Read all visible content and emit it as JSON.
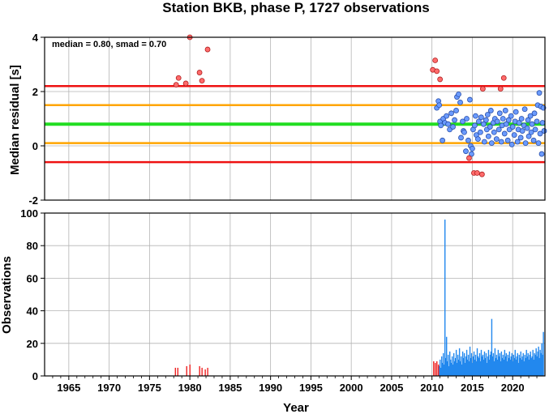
{
  "title": "Station BKB, phase P, 1727 observations",
  "colors": {
    "median_line": "#22dd22",
    "smad_line": "#ffa500",
    "outlier_line": "#ee1111",
    "outlier_point": "#ff6b6b",
    "inlier_point": "#6b9bff",
    "bar_early": "#ee2222",
    "bar_late": "#2288ee",
    "grid": "#b4b4b4"
  },
  "chart_data": [
    {
      "type": "scatter",
      "ylabel": "Median residual [s]",
      "xlim": [
        1962,
        2024
      ],
      "ylim": [
        -2,
        4
      ],
      "yticks": [
        4,
        2,
        0,
        -2
      ],
      "annotation": "median = 0.80, smad = 0.70",
      "grid": true,
      "hlines": [
        {
          "y": 2.2,
          "role": "outlier"
        },
        {
          "y": 1.5,
          "role": "smad"
        },
        {
          "y": 0.8,
          "role": "median"
        },
        {
          "y": 0.1,
          "role": "smad"
        },
        {
          "y": -0.6,
          "role": "outlier"
        }
      ],
      "outliers": [
        [
          1978.3,
          2.25
        ],
        [
          1978.6,
          2.5
        ],
        [
          1979.5,
          2.3
        ],
        [
          1980.0,
          4.0
        ],
        [
          1981.2,
          2.7
        ],
        [
          1981.5,
          2.4
        ],
        [
          1982.2,
          3.55
        ],
        [
          2010.1,
          2.8
        ],
        [
          2010.4,
          3.15
        ],
        [
          2010.6,
          2.75
        ],
        [
          2011.0,
          2.45
        ],
        [
          2014.6,
          -0.45
        ],
        [
          2015.2,
          -1.0
        ],
        [
          2015.6,
          -1.0
        ],
        [
          2016.2,
          -1.05
        ],
        [
          2016.3,
          2.1
        ],
        [
          2018.5,
          2.1
        ],
        [
          2018.9,
          2.5
        ]
      ],
      "inliers": [
        [
          2010.6,
          1.4
        ],
        [
          2010.8,
          1.65
        ],
        [
          2010.9,
          1.5
        ],
        [
          2011.0,
          0.9
        ],
        [
          2011.1,
          0.75
        ],
        [
          2011.3,
          0.2
        ],
        [
          2011.4,
          1.0
        ],
        [
          2011.6,
          0.85
        ],
        [
          2011.8,
          1.1
        ],
        [
          2012.0,
          0.8
        ],
        [
          2012.2,
          0.6
        ],
        [
          2012.4,
          1.2
        ],
        [
          2012.6,
          0.7
        ],
        [
          2012.8,
          0.95
        ],
        [
          2013.0,
          1.3
        ],
        [
          2013.1,
          1.8
        ],
        [
          2013.3,
          1.9
        ],
        [
          2013.5,
          1.6
        ],
        [
          2013.6,
          0.3
        ],
        [
          2013.8,
          0.9
        ],
        [
          2013.9,
          0.55
        ],
        [
          2014.0,
          0.5
        ],
        [
          2014.2,
          -0.2
        ],
        [
          2014.3,
          1.0
        ],
        [
          2014.5,
          0.2
        ],
        [
          2014.7,
          1.7
        ],
        [
          2014.8,
          0.0
        ],
        [
          2014.9,
          -0.3
        ],
        [
          2015.0,
          -0.1
        ],
        [
          2015.1,
          0.6
        ],
        [
          2015.3,
          0.75
        ],
        [
          2015.4,
          1.1
        ],
        [
          2015.5,
          0.4
        ],
        [
          2015.7,
          0.25
        ],
        [
          2015.8,
          0.9
        ],
        [
          2016.0,
          0.5
        ],
        [
          2016.1,
          1.05
        ],
        [
          2016.4,
          0.8
        ],
        [
          2016.5,
          0.15
        ],
        [
          2016.7,
          0.95
        ],
        [
          2016.8,
          0.6
        ],
        [
          2016.9,
          1.15
        ],
        [
          2017.0,
          0.35
        ],
        [
          2017.2,
          0.7
        ],
        [
          2017.3,
          1.3
        ],
        [
          2017.4,
          0.1
        ],
        [
          2017.6,
          0.85
        ],
        [
          2017.7,
          0.5
        ],
        [
          2017.8,
          1.0
        ],
        [
          2018.0,
          0.25
        ],
        [
          2018.1,
          0.9
        ],
        [
          2018.3,
          0.6
        ],
        [
          2018.4,
          1.2
        ],
        [
          2018.6,
          0.15
        ],
        [
          2018.7,
          0.75
        ],
        [
          2018.8,
          1.0
        ],
        [
          2019.0,
          0.45
        ],
        [
          2019.1,
          1.3
        ],
        [
          2019.2,
          0.8
        ],
        [
          2019.4,
          0.2
        ],
        [
          2019.5,
          0.95
        ],
        [
          2019.6,
          0.6
        ],
        [
          2019.8,
          1.1
        ],
        [
          2019.9,
          0.05
        ],
        [
          2020.0,
          0.7
        ],
        [
          2020.2,
          0.4
        ],
        [
          2020.3,
          0.9
        ],
        [
          2020.4,
          1.25
        ],
        [
          2020.6,
          0.15
        ],
        [
          2020.7,
          0.6
        ],
        [
          2020.8,
          0.85
        ],
        [
          2021.0,
          0.3
        ],
        [
          2021.1,
          1.0
        ],
        [
          2021.2,
          0.55
        ],
        [
          2021.4,
          0.75
        ],
        [
          2021.5,
          1.35
        ],
        [
          2021.6,
          0.1
        ],
        [
          2021.8,
          0.65
        ],
        [
          2021.9,
          0.95
        ],
        [
          2022.0,
          0.35
        ],
        [
          2022.2,
          1.1
        ],
        [
          2022.3,
          0.5
        ],
        [
          2022.4,
          0.8
        ],
        [
          2022.6,
          0.2
        ],
        [
          2022.7,
          1.2
        ],
        [
          2022.8,
          0.6
        ],
        [
          2023.0,
          0.9
        ],
        [
          2023.1,
          1.5
        ],
        [
          2023.2,
          0.1
        ],
        [
          2023.3,
          1.95
        ],
        [
          2023.4,
          0.45
        ],
        [
          2023.5,
          1.45
        ],
        [
          2023.6,
          -0.3
        ],
        [
          2023.7,
          0.85
        ],
        [
          2023.8,
          1.4
        ],
        [
          2023.9,
          0.55
        ]
      ]
    },
    {
      "type": "bar",
      "xlabel": "Year",
      "ylabel": "Observations",
      "xlim": [
        1962,
        2024
      ],
      "ylim": [
        0,
        100
      ],
      "yticks": [
        100,
        80,
        60,
        40,
        20,
        0
      ],
      "xticks": [
        1965,
        1970,
        1975,
        1980,
        1985,
        1990,
        1995,
        2000,
        2005,
        2010,
        2015,
        2020
      ],
      "grid": true,
      "early_bars": [
        [
          1978.2,
          5
        ],
        [
          1978.5,
          5
        ],
        [
          1979.6,
          6
        ],
        [
          1980.0,
          7
        ],
        [
          1981.2,
          6
        ],
        [
          1981.5,
          5
        ],
        [
          1981.9,
          4
        ],
        [
          1982.2,
          5
        ]
      ],
      "late_bars_red": [
        [
          2010.2,
          9
        ],
        [
          2010.4,
          8
        ],
        [
          2010.6,
          9
        ],
        [
          2010.8,
          7
        ]
      ],
      "late_bars": [
        [
          2010.9,
          6
        ],
        [
          2011.0,
          10
        ],
        [
          2011.1,
          5
        ],
        [
          2011.2,
          12
        ],
        [
          2011.3,
          8
        ],
        [
          2011.4,
          14
        ],
        [
          2011.5,
          7
        ],
        [
          2011.6,
          96
        ],
        [
          2011.7,
          11
        ],
        [
          2011.8,
          24
        ],
        [
          2011.9,
          9
        ],
        [
          2012.0,
          13
        ],
        [
          2012.1,
          6
        ],
        [
          2012.2,
          15
        ],
        [
          2012.3,
          10
        ],
        [
          2012.4,
          8
        ],
        [
          2012.5,
          12
        ],
        [
          2012.6,
          7
        ],
        [
          2012.7,
          14
        ],
        [
          2012.8,
          9
        ],
        [
          2012.9,
          11
        ],
        [
          2013.0,
          16
        ],
        [
          2013.1,
          8
        ],
        [
          2013.2,
          13
        ],
        [
          2013.3,
          10
        ],
        [
          2013.4,
          17
        ],
        [
          2013.5,
          9
        ],
        [
          2013.6,
          12
        ],
        [
          2013.7,
          7
        ],
        [
          2013.8,
          15
        ],
        [
          2013.9,
          11
        ],
        [
          2014.0,
          14
        ],
        [
          2014.1,
          8
        ],
        [
          2014.2,
          12
        ],
        [
          2014.3,
          16
        ],
        [
          2014.4,
          10
        ],
        [
          2014.5,
          13
        ],
        [
          2014.6,
          9
        ],
        [
          2014.7,
          18
        ],
        [
          2014.8,
          11
        ],
        [
          2014.9,
          14
        ],
        [
          2015.0,
          8
        ],
        [
          2015.1,
          12
        ],
        [
          2015.2,
          15
        ],
        [
          2015.3,
          10
        ],
        [
          2015.4,
          13
        ],
        [
          2015.5,
          9
        ],
        [
          2015.6,
          17
        ],
        [
          2015.7,
          12
        ],
        [
          2015.8,
          11
        ],
        [
          2015.9,
          14
        ],
        [
          2016.0,
          9
        ],
        [
          2016.1,
          16
        ],
        [
          2016.2,
          12
        ],
        [
          2016.3,
          13
        ],
        [
          2016.4,
          10
        ],
        [
          2016.5,
          15
        ],
        [
          2016.6,
          11
        ],
        [
          2016.7,
          14
        ],
        [
          2016.8,
          8
        ],
        [
          2016.9,
          12
        ],
        [
          2017.0,
          16
        ],
        [
          2017.1,
          10
        ],
        [
          2017.2,
          13
        ],
        [
          2017.3,
          15
        ],
        [
          2017.4,
          35
        ],
        [
          2017.5,
          12
        ],
        [
          2017.6,
          14
        ],
        [
          2017.7,
          9
        ],
        [
          2017.8,
          17
        ],
        [
          2017.9,
          11
        ],
        [
          2018.0,
          13
        ],
        [
          2018.1,
          10
        ],
        [
          2018.2,
          16
        ],
        [
          2018.3,
          12
        ],
        [
          2018.4,
          14
        ],
        [
          2018.5,
          9
        ],
        [
          2018.6,
          15
        ],
        [
          2018.7,
          11
        ],
        [
          2018.8,
          13
        ],
        [
          2018.9,
          10
        ],
        [
          2019.0,
          16
        ],
        [
          2019.1,
          12
        ],
        [
          2019.2,
          14
        ],
        [
          2019.3,
          9
        ],
        [
          2019.4,
          13
        ],
        [
          2019.5,
          11
        ],
        [
          2019.6,
          15
        ],
        [
          2019.7,
          10
        ],
        [
          2019.8,
          12
        ],
        [
          2019.9,
          14
        ],
        [
          2020.0,
          9
        ],
        [
          2020.1,
          13
        ],
        [
          2020.2,
          11
        ],
        [
          2020.3,
          16
        ],
        [
          2020.4,
          10
        ],
        [
          2020.5,
          12
        ],
        [
          2020.6,
          14
        ],
        [
          2020.7,
          8
        ],
        [
          2020.8,
          13
        ],
        [
          2020.9,
          11
        ],
        [
          2021.0,
          15
        ],
        [
          2021.1,
          10
        ],
        [
          2021.2,
          12
        ],
        [
          2021.3,
          14
        ],
        [
          2021.4,
          9
        ],
        [
          2021.5,
          13
        ],
        [
          2021.6,
          11
        ],
        [
          2021.7,
          16
        ],
        [
          2021.8,
          12
        ],
        [
          2021.9,
          14
        ],
        [
          2022.0,
          10
        ],
        [
          2022.1,
          13
        ],
        [
          2022.2,
          15
        ],
        [
          2022.3,
          11
        ],
        [
          2022.4,
          12
        ],
        [
          2022.5,
          16
        ],
        [
          2022.6,
          10
        ],
        [
          2022.7,
          14
        ],
        [
          2022.8,
          13
        ],
        [
          2022.9,
          17
        ],
        [
          2023.0,
          12
        ],
        [
          2023.1,
          15
        ],
        [
          2023.2,
          18
        ],
        [
          2023.3,
          11
        ],
        [
          2023.4,
          16
        ],
        [
          2023.5,
          14
        ],
        [
          2023.6,
          20
        ],
        [
          2023.7,
          13
        ],
        [
          2023.8,
          27
        ]
      ]
    }
  ]
}
